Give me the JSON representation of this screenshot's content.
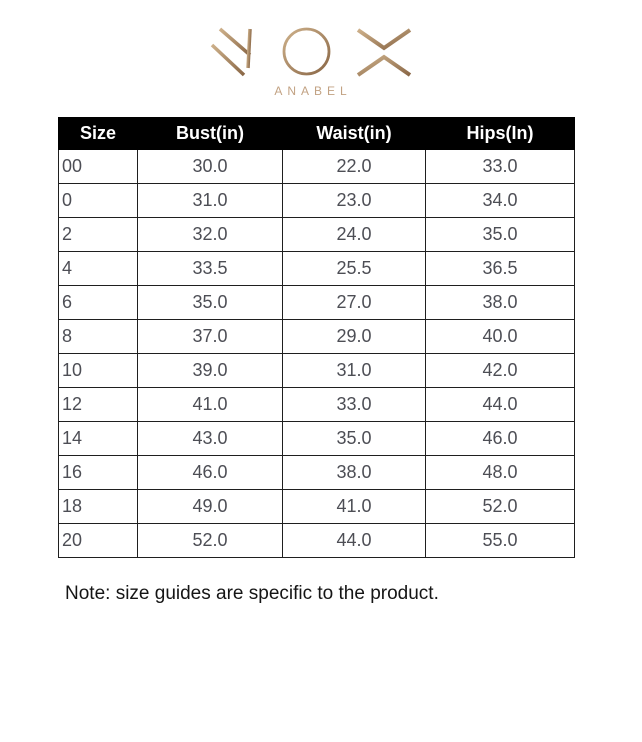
{
  "brand": {
    "name": "NOX",
    "subtitle": "ANABEL",
    "gold_light": "#cdb08a",
    "gold_dark": "#8a6746"
  },
  "size_guide": {
    "headers": {
      "size": "Size",
      "bust": "Bust(in)",
      "waist": "Waist(in)",
      "hips": "Hips(In)"
    },
    "rows": [
      {
        "size": "00",
        "bust": "30.0",
        "waist": "22.0",
        "hips": "33.0"
      },
      {
        "size": "0",
        "bust": "31.0",
        "waist": "23.0",
        "hips": "34.0"
      },
      {
        "size": "2",
        "bust": "32.0",
        "waist": "24.0",
        "hips": "35.0"
      },
      {
        "size": "4",
        "bust": "33.5",
        "waist": "25.5",
        "hips": "36.5"
      },
      {
        "size": "6",
        "bust": "35.0",
        "waist": "27.0",
        "hips": "38.0"
      },
      {
        "size": "8",
        "bust": "37.0",
        "waist": "29.0",
        "hips": "40.0"
      },
      {
        "size": "10",
        "bust": "39.0",
        "waist": "31.0",
        "hips": "42.0"
      },
      {
        "size": "12",
        "bust": "41.0",
        "waist": "33.0",
        "hips": "44.0"
      },
      {
        "size": "14",
        "bust": "43.0",
        "waist": "35.0",
        "hips": "46.0"
      },
      {
        "size": "16",
        "bust": "46.0",
        "waist": "38.0",
        "hips": "48.0"
      },
      {
        "size": "18",
        "bust": "49.0",
        "waist": "41.0",
        "hips": "52.0"
      },
      {
        "size": "20",
        "bust": "52.0",
        "waist": "44.0",
        "hips": "55.0"
      }
    ],
    "colors": {
      "header_bg": "#000000",
      "header_text": "#ffffff",
      "cell_text": "#4d4e55",
      "border": "#1f1f1f",
      "flag": "#1e7b34"
    }
  },
  "note": "Note: size guides are specific to the product."
}
